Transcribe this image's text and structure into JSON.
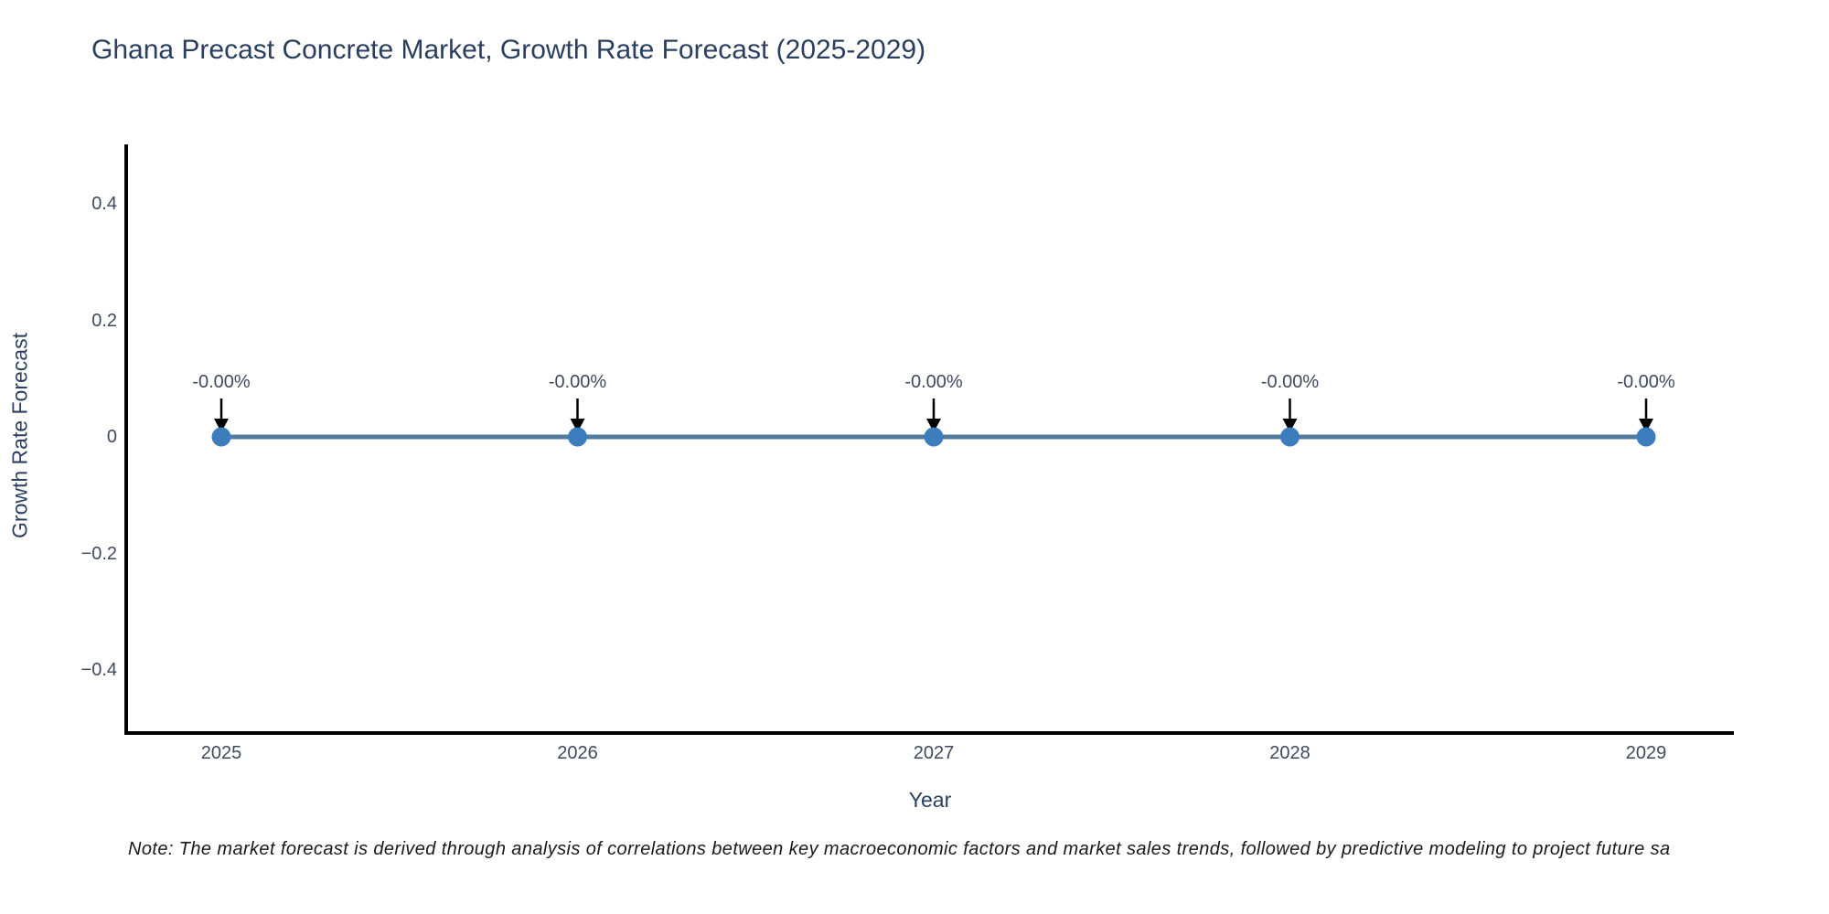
{
  "title": "Ghana Precast Concrete Market, Growth Rate Forecast (2025-2029)",
  "footnote": "Note: The market forecast is derived through analysis of correlations between key macroeconomic factors and market sales trends, followed by predictive modeling to project future sa",
  "chart_data": {
    "type": "line",
    "title": "Ghana Precast Concrete Market, Growth Rate Forecast (2025-2029)",
    "xlabel": "Year",
    "ylabel": "Growth Rate Forecast",
    "x": [
      2025,
      2026,
      2027,
      2028,
      2029
    ],
    "series": [
      {
        "name": "Growth Rate Forecast",
        "values": [
          0,
          0,
          0,
          0,
          0
        ]
      }
    ],
    "point_labels": [
      "-0.00%",
      "-0.00%",
      "-0.00%",
      "-0.00%",
      "-0.00%"
    ],
    "xtick_labels": [
      "2025",
      "2026",
      "2027",
      "2028",
      "2029"
    ],
    "yticks": [
      0.4,
      0.2,
      0,
      -0.2,
      -0.4
    ],
    "ytick_labels": [
      "0.4",
      "0.2",
      "0",
      "−0.2",
      "−0.4"
    ],
    "ylim": [
      -0.5,
      0.5
    ],
    "grid": false,
    "legend_position": "none",
    "annotation_arrows": "down-to-point",
    "colors": {
      "line": "#557aa0",
      "marker": "#3e7dbd",
      "arrow": "#000000",
      "axis": "#000000",
      "title_text": "#2a3f5f",
      "tick_text": "#3f4a5e"
    }
  }
}
